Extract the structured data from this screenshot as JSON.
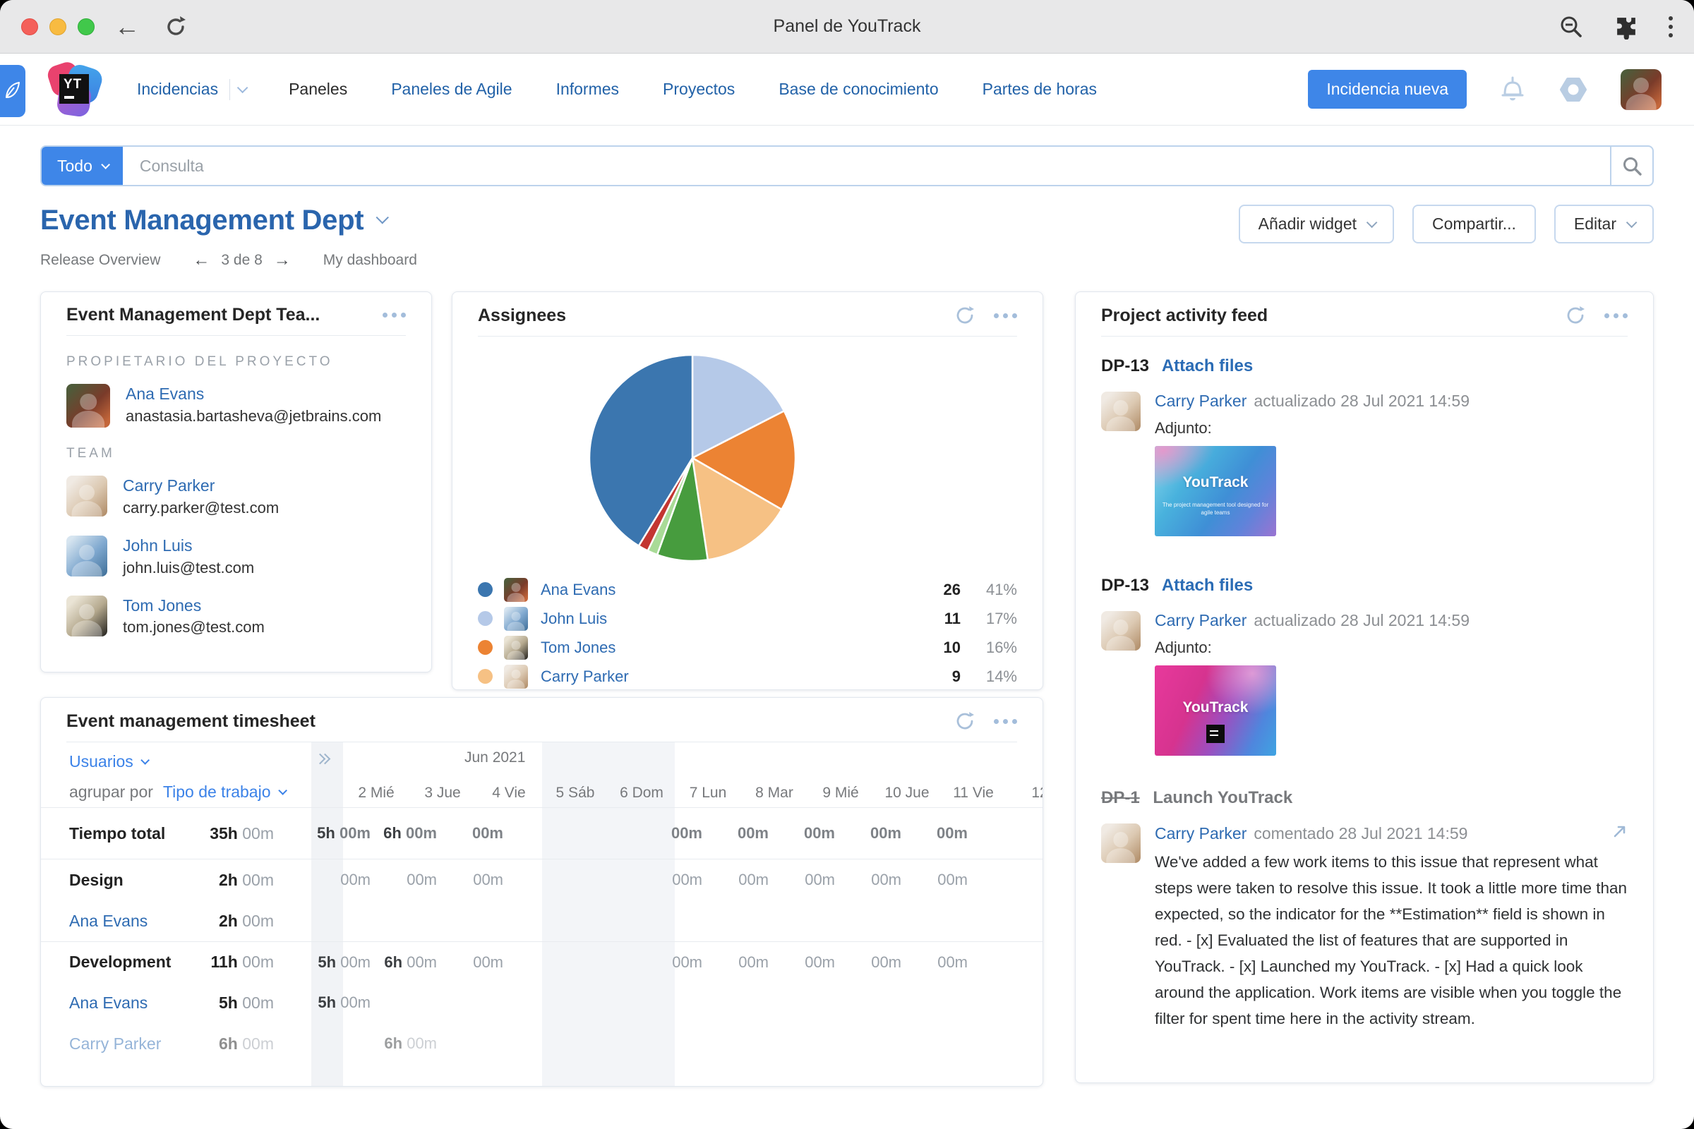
{
  "browser": {
    "title": "Panel de YouTrack",
    "back_label": "←"
  },
  "nav": {
    "items": [
      {
        "label": "Incidencias",
        "state": "active-with-dropdown"
      },
      {
        "label": "Paneles",
        "state": "current"
      },
      {
        "label": "Paneles de Agile",
        "state": "link"
      },
      {
        "label": "Informes",
        "state": "link"
      },
      {
        "label": "Proyectos",
        "state": "link"
      },
      {
        "label": "Base de conocimiento",
        "state": "link"
      },
      {
        "label": "Partes de horas",
        "state": "link"
      }
    ],
    "new_issue_button": "Incidencia nueva"
  },
  "search": {
    "scope": "Todo",
    "placeholder": "Consulta"
  },
  "page": {
    "title": "Event Management Dept",
    "breadcrumb": {
      "left": "Release Overview",
      "prev_arrow": "←",
      "pager": "3 de 8",
      "next_arrow": "→",
      "right": "My dashboard"
    },
    "buttons": {
      "add_widget": "Añadir widget",
      "share": "Compartir...",
      "edit": "Editar"
    }
  },
  "team_widget": {
    "title": "Event Management Dept Tea...",
    "owner_section": "PROPIETARIO DEL PROYECTO",
    "owner": {
      "name": "Ana Evans",
      "email": "anastasia.bartasheva@jetbrains.com"
    },
    "team_section": "TEAM",
    "members": [
      {
        "name": "Carry Parker",
        "email": "carry.parker@test.com"
      },
      {
        "name": "John Luis",
        "email": "john.luis@test.com"
      },
      {
        "name": "Tom Jones",
        "email": "tom.jones@test.com"
      }
    ]
  },
  "assignees_widget": {
    "title": "Assignees"
  },
  "chart_data": {
    "type": "pie",
    "title": "Assignees",
    "start_angle_deg": -90,
    "direction": "clockwise",
    "slices": [
      {
        "label": "John Luis",
        "value": 11,
        "pct_label": "17%",
        "color": "#b5c9e8"
      },
      {
        "label": "Tom Jones",
        "value": 10,
        "pct_label": "16%",
        "color": "#ec8333"
      },
      {
        "label": "Carry Parker",
        "value": 9,
        "pct_label": "14%",
        "color": "#f6c184"
      },
      {
        "label": "unlabeled-green",
        "value": 5,
        "color": "#479c3e",
        "estimated": true
      },
      {
        "label": "unlabeled-light-green",
        "value": 1,
        "color": "#a9db97",
        "estimated": true
      },
      {
        "label": "unlabeled-red",
        "value": 1,
        "color": "#c33631",
        "estimated": true
      },
      {
        "label": "Ana Evans",
        "value": 26,
        "pct_label": "41%",
        "color": "#3b76af"
      }
    ],
    "legend": [
      {
        "name": "Ana Evans",
        "count": "26",
        "pct": "41%",
        "color": "#3b76af",
        "avatar": "ana"
      },
      {
        "name": "John Luis",
        "count": "11",
        "pct": "17%",
        "color": "#b5c9e8",
        "avatar": "john"
      },
      {
        "name": "Tom Jones",
        "count": "10",
        "pct": "16%",
        "color": "#ec8333",
        "avatar": "tom"
      },
      {
        "name": "Carry Parker",
        "count": "9",
        "pct": "14%",
        "color": "#f6c184",
        "avatar": "carry"
      }
    ],
    "legend_position": "bottom"
  },
  "activity_widget": {
    "title": "Project activity feed",
    "entries": [
      {
        "issue_id": "DP-13",
        "issue_title": "Attach files",
        "author": "Carry Parker",
        "action": "actualizado",
        "timestamp": "28 Jul 2021 14:59",
        "attachment_label": "Adjunto:",
        "attachment_text": "YouTrack",
        "attachment_caption": "The project management tool designed for agile teams"
      },
      {
        "issue_id": "DP-13",
        "issue_title": "Attach files",
        "author": "Carry Parker",
        "action": "actualizado",
        "timestamp": "28 Jul 2021 14:59",
        "attachment_label": "Adjunto:",
        "attachment_text": "YouTrack"
      },
      {
        "issue_id": "DP-1",
        "issue_title": "Launch YouTrack",
        "resolved": true,
        "author": "Carry Parker",
        "action": "comentado",
        "timestamp": "28 Jul 2021 14:59",
        "comment": "We've added a few work items to this issue that represent what steps were taken to resolve this issue. It took a little more time than expected, so the indicator for the **Estimation** field is shown in red. - [x] Evaluated the list of features that are supported in YouTrack. - [x] Launched my YouTrack. - [x] Had a quick look around the application. Work items are visible when you toggle the filter for spent time here in the activity stream."
      }
    ]
  },
  "timesheet": {
    "title": "Event management timesheet",
    "filters": {
      "users_label": "Usuarios",
      "group_by_label": "agrupar por",
      "group_by_value": "Tipo de trabajo"
    },
    "month_label": "Jun 2021",
    "days": [
      {
        "label": "2 Mié"
      },
      {
        "label": "3 Jue"
      },
      {
        "label": "4 Vie"
      },
      {
        "label": "5 Sáb",
        "weekend": true
      },
      {
        "label": "6 Dom",
        "weekend": true
      },
      {
        "label": "7 Lun"
      },
      {
        "label": "8 Mar"
      },
      {
        "label": "9 Mié"
      },
      {
        "label": "10 Jue"
      },
      {
        "label": "11 Vie"
      },
      {
        "label": "12"
      }
    ],
    "rows": [
      {
        "label": "Tiempo total",
        "type": "total",
        "total_h": "35h",
        "total_m": "00m",
        "cells": [
          "5h 00m",
          "6h 00m",
          "00m",
          "",
          "",
          "00m",
          "00m",
          "00m",
          "00m",
          "00m",
          ""
        ]
      },
      {
        "label": "Design",
        "type": "group",
        "total_h": "2h",
        "total_m": "00m",
        "cells": [
          "00m",
          "00m",
          "00m",
          "",
          "",
          "00m",
          "00m",
          "00m",
          "00m",
          "00m",
          ""
        ]
      },
      {
        "label": "Ana Evans",
        "type": "user",
        "total_h": "2h",
        "total_m": "00m",
        "cells": [
          "",
          "",
          "",
          "",
          "",
          "",
          "",
          "",
          "",
          "",
          ""
        ]
      },
      {
        "label": "Development",
        "type": "group",
        "total_h": "11h",
        "total_m": "00m",
        "cells": [
          "5h 00m",
          "6h 00m",
          "00m",
          "",
          "",
          "00m",
          "00m",
          "00m",
          "00m",
          "00m",
          ""
        ]
      },
      {
        "label": "Ana Evans",
        "type": "user",
        "total_h": "5h",
        "total_m": "00m",
        "cells": [
          "5h 00m",
          "",
          "",
          "",
          "",
          "",
          "",
          "",
          "",
          "",
          ""
        ]
      },
      {
        "label": "Carry Parker",
        "type": "user",
        "faded": true,
        "total_h": "6h",
        "total_m": "00m",
        "cells": [
          "",
          "6h 00m",
          "",
          "",
          "",
          "",
          "",
          "",
          "",
          "",
          ""
        ]
      }
    ]
  },
  "colors": {
    "accent_blue": "#3e86e8",
    "link_blue": "#2e6bb2",
    "muted_icon_blue": "#a9c0da",
    "weekend_gray": "#f3f5f8"
  }
}
